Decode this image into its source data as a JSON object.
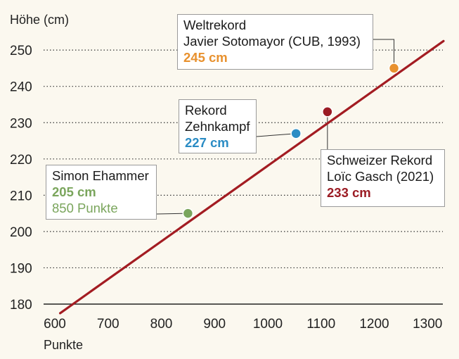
{
  "chart_data": {
    "type": "line",
    "ylabel": "Höhe (cm)",
    "xlabel": "Punkte",
    "xlim": [
      595,
      1335
    ],
    "ylim": [
      175,
      258
    ],
    "x_ticks": [
      "600",
      "700",
      "800",
      "900",
      "1000",
      "1100",
      "1200",
      "1300"
    ],
    "y_ticks": [
      "180",
      "190",
      "200",
      "210",
      "220",
      "230",
      "240",
      "250"
    ],
    "grid": "horizontal-dotted",
    "line": {
      "x": [
        610,
        1330
      ],
      "y": [
        177.5,
        252.5
      ],
      "color": "#a31c22"
    },
    "points": [
      {
        "x": 850,
        "y": 205,
        "color": "#7aa55c",
        "lines": [
          "Simon Ehammer",
          "205 cm",
          "850 Punkte"
        ]
      },
      {
        "x": 1053,
        "y": 227,
        "color": "#2b8cc4",
        "lines": [
          "Rekord",
          "Zehnkampf",
          "227 cm"
        ]
      },
      {
        "x": 1112,
        "y": 233,
        "color": "#9b1c24",
        "lines": [
          "Schweizer Rekord",
          "Loïc Gasch (2021)",
          "233 cm"
        ]
      },
      {
        "x": 1237,
        "y": 245,
        "color": "#e8912e",
        "lines": [
          "Weltrekord",
          "Javier Sotomayor (CUB, 1993)",
          "245 cm"
        ]
      }
    ]
  }
}
